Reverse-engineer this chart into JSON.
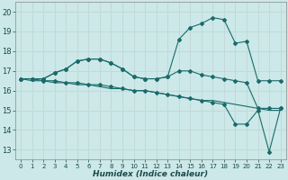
{
  "xlabel": "Humidex (Indice chaleur)",
  "bg_color": "#cce8e8",
  "grid_color": "#c4d8d8",
  "line_color": "#1a6b6b",
  "x": [
    0,
    1,
    2,
    3,
    4,
    5,
    6,
    7,
    8,
    9,
    10,
    11,
    12,
    13,
    14,
    15,
    16,
    17,
    18,
    19,
    20,
    21,
    22,
    23
  ],
  "line1": [
    16.6,
    16.6,
    16.6,
    16.9,
    17.1,
    17.5,
    17.6,
    17.6,
    17.4,
    17.1,
    16.7,
    16.6,
    16.6,
    16.7,
    18.6,
    19.2,
    19.4,
    19.7,
    19.6,
    18.4,
    18.5,
    16.5,
    16.5,
    16.5
  ],
  "line2": [
    16.6,
    16.6,
    16.6,
    16.9,
    17.1,
    17.5,
    17.6,
    17.6,
    17.4,
    17.1,
    16.7,
    16.6,
    16.6,
    16.7,
    17.0,
    17.0,
    16.8,
    16.7,
    16.6,
    16.5,
    16.4,
    15.1,
    15.1,
    15.1
  ],
  "line3": [
    16.6,
    16.6,
    16.5,
    16.5,
    16.4,
    16.4,
    16.3,
    16.3,
    16.2,
    16.1,
    16.0,
    16.0,
    15.9,
    15.8,
    15.7,
    15.6,
    15.5,
    15.4,
    15.3,
    14.3,
    14.3,
    15.0,
    12.9,
    15.1
  ],
  "line4": [
    16.6,
    16.5,
    16.5,
    16.4,
    16.4,
    16.3,
    16.3,
    16.2,
    16.1,
    16.1,
    16.0,
    16.0,
    15.9,
    15.8,
    15.7,
    15.6,
    15.5,
    15.5,
    15.4,
    15.3,
    15.2,
    15.1,
    15.0,
    15.0
  ],
  "ylim": [
    12.5,
    20.5
  ],
  "xlim": [
    -0.5,
    23.5
  ],
  "yticks": [
    13,
    14,
    15,
    16,
    17,
    18,
    19,
    20
  ],
  "xticks": [
    0,
    1,
    2,
    3,
    4,
    5,
    6,
    7,
    8,
    9,
    10,
    11,
    12,
    13,
    14,
    15,
    16,
    17,
    18,
    19,
    20,
    21,
    22,
    23
  ]
}
